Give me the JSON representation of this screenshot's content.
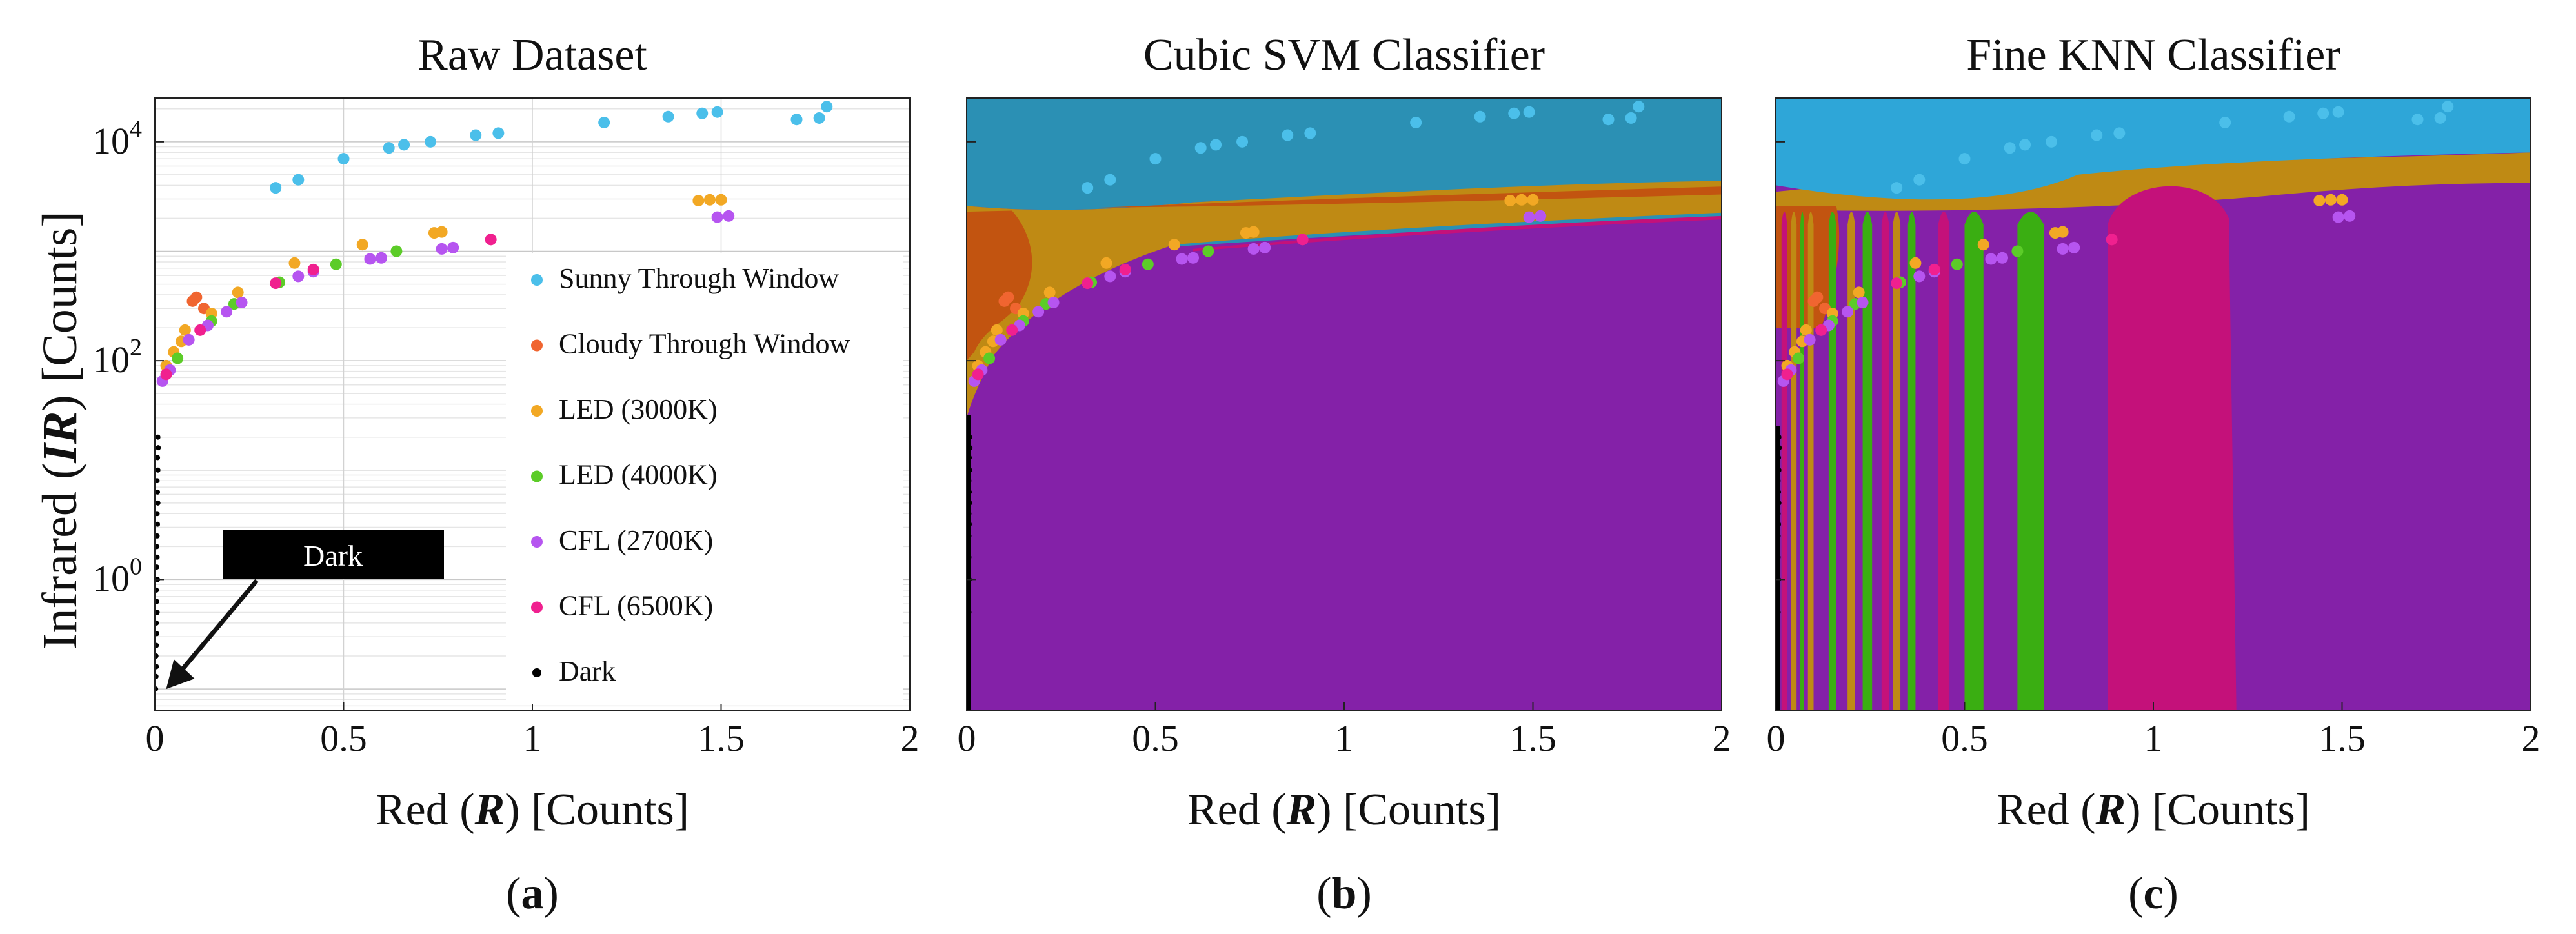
{
  "colors": {
    "sunny": "#4bbfea",
    "cloudy": "#f06530",
    "led3000": "#f2a824",
    "led4000": "#5ccc28",
    "cfl2700": "#b655f0",
    "cfl6500": "#f0208f",
    "dark": "#000000",
    "region_sunny": "#2b90b4",
    "region_sunny_knn": "#2ea6d8",
    "region_cloudy": "#c25410",
    "region_led3000": "#bf8a14",
    "region_led4000": "#3aae12",
    "region_cfl2700": "#8421a8",
    "region_cfl6500": "#c4117a",
    "region_dark": "#000000"
  },
  "chart_data": [
    {
      "id": "a",
      "type": "scatter",
      "title": "Raw Dataset",
      "panel_label": "(a)",
      "panel_letter": "a",
      "xlabel_pre": "Red (",
      "xlabel_var": "R",
      "xlabel_post": ")  [Counts]",
      "ylabel_pre": "Infrared (",
      "ylabel_var": "IR",
      "ylabel_post": ")  [Counts]",
      "xlim": [
        0,
        2
      ],
      "ylim_log10": [
        -1.2,
        4.4
      ],
      "xticks": [
        {
          "value": 0,
          "label": "0"
        },
        {
          "value": 0.5,
          "label": "0.5"
        },
        {
          "value": 1,
          "label": "1"
        },
        {
          "value": 1.5,
          "label": "1.5"
        },
        {
          "value": 2,
          "label": "2"
        }
      ],
      "yticks": [
        {
          "log10": 0,
          "base": "10",
          "exp": "0"
        },
        {
          "log10": 2,
          "base": "10",
          "exp": "2"
        },
        {
          "log10": 4,
          "base": "10",
          "exp": "4"
        }
      ],
      "grid": true,
      "legend_position": "right",
      "legend": [
        {
          "label": "Sunny Through Window",
          "key": "sunny"
        },
        {
          "label": "Cloudy Through Window",
          "key": "cloudy"
        },
        {
          "label": "LED (3000K)",
          "key": "led3000"
        },
        {
          "label": "LED (4000K)",
          "key": "led4000"
        },
        {
          "label": "CFL (2700K)",
          "key": "cfl2700"
        },
        {
          "label": "CFL (6500K)",
          "key": "cfl6500"
        },
        {
          "label": "Dark",
          "key": "dark"
        }
      ],
      "annotation": {
        "text": "Dark",
        "points_to": [
          0.03,
          0.1
        ]
      }
    },
    {
      "id": "b",
      "type": "scatter",
      "title": "Cubic SVM Classifier",
      "panel_label": "(b)",
      "panel_letter": "b",
      "xlabel_pre": "Red (",
      "xlabel_var": "R",
      "xlabel_post": ") [Counts]",
      "xlim": [
        0,
        2
      ],
      "ylim_log10": [
        -1.2,
        4.4
      ],
      "xticks": [
        {
          "value": 0,
          "label": "0"
        },
        {
          "value": 0.5,
          "label": "0.5"
        },
        {
          "value": 1,
          "label": "1"
        },
        {
          "value": 1.5,
          "label": "1.5"
        },
        {
          "value": 2,
          "label": "2"
        }
      ],
      "decision_regions": "svm"
    },
    {
      "id": "c",
      "type": "scatter",
      "title": "Fine KNN Classifier",
      "panel_label": "(c)",
      "panel_letter": "c",
      "xlabel_pre": "Red (",
      "xlabel_var": "R",
      "xlabel_post": ") [Counts]",
      "xlim": [
        0,
        2
      ],
      "ylim_log10": [
        -1.2,
        4.4
      ],
      "xticks": [
        {
          "value": 0,
          "label": "0"
        },
        {
          "value": 0.5,
          "label": "0.5"
        },
        {
          "value": 1,
          "label": "1"
        },
        {
          "value": 1.5,
          "label": "1.5"
        },
        {
          "value": 2,
          "label": "2"
        }
      ],
      "decision_regions": "knn"
    }
  ],
  "series": [
    {
      "name": "Sunny Through Window",
      "key": "sunny",
      "points": [
        [
          0.32,
          3800
        ],
        [
          0.38,
          4500
        ],
        [
          0.5,
          7000
        ],
        [
          0.62,
          8800
        ],
        [
          0.66,
          9400
        ],
        [
          0.73,
          10000
        ],
        [
          0.85,
          11500
        ],
        [
          0.91,
          12000
        ],
        [
          1.19,
          15000
        ],
        [
          1.36,
          17000
        ],
        [
          1.45,
          18200
        ],
        [
          1.49,
          18700
        ],
        [
          1.7,
          16000
        ],
        [
          1.76,
          16500
        ],
        [
          1.78,
          21000
        ]
      ]
    },
    {
      "name": "Cloudy Through Window",
      "key": "cloudy",
      "points": [
        [
          0.1,
          350
        ],
        [
          0.11,
          380
        ],
        [
          0.13,
          300
        ]
      ]
    },
    {
      "name": "LED (3000K)",
      "key": "led3000",
      "points": [
        [
          0.03,
          90
        ],
        [
          0.05,
          120
        ],
        [
          0.07,
          150
        ],
        [
          0.08,
          190
        ],
        [
          0.15,
          270
        ],
        [
          0.22,
          420
        ],
        [
          0.37,
          780
        ],
        [
          0.55,
          1150
        ],
        [
          0.74,
          1470
        ],
        [
          0.76,
          1500
        ],
        [
          1.44,
          2900
        ],
        [
          1.47,
          2950
        ],
        [
          1.5,
          2950
        ]
      ]
    },
    {
      "name": "LED (4000K)",
      "key": "led4000",
      "points": [
        [
          0.06,
          105
        ],
        [
          0.15,
          230
        ],
        [
          0.21,
          330
        ],
        [
          0.33,
          520
        ],
        [
          0.48,
          760
        ],
        [
          0.64,
          1000
        ]
      ]
    },
    {
      "name": "CFL (2700K)",
      "key": "cfl2700",
      "points": [
        [
          0.02,
          65
        ],
        [
          0.04,
          82
        ],
        [
          0.09,
          155
        ],
        [
          0.14,
          210
        ],
        [
          0.19,
          280
        ],
        [
          0.23,
          340
        ],
        [
          0.38,
          590
        ],
        [
          0.42,
          650
        ],
        [
          0.57,
          850
        ],
        [
          0.6,
          870
        ],
        [
          0.76,
          1050
        ],
        [
          0.79,
          1080
        ],
        [
          1.49,
          2050
        ],
        [
          1.52,
          2100
        ]
      ]
    },
    {
      "name": "CFL (6500K)",
      "key": "cfl6500",
      "points": [
        [
          0.03,
          75
        ],
        [
          0.12,
          190
        ],
        [
          0.32,
          510
        ],
        [
          0.42,
          680
        ],
        [
          0.89,
          1280
        ]
      ]
    },
    {
      "name": "Dark",
      "key": "dark",
      "points": [
        [
          0.002,
          0.1
        ],
        [
          0.003,
          0.13
        ],
        [
          0.004,
          0.16
        ],
        [
          0.003,
          0.2
        ],
        [
          0.004,
          0.25
        ],
        [
          0.005,
          0.32
        ],
        [
          0.004,
          0.4
        ],
        [
          0.006,
          0.5
        ],
        [
          0.005,
          0.63
        ],
        [
          0.004,
          0.8
        ],
        [
          0.007,
          1
        ],
        [
          0.005,
          1.3
        ],
        [
          0.006,
          1.6
        ],
        [
          0.005,
          2
        ],
        [
          0.006,
          2.5
        ],
        [
          0.007,
          3.2
        ],
        [
          0.006,
          4
        ],
        [
          0.008,
          5
        ],
        [
          0.007,
          6.3
        ],
        [
          0.006,
          8
        ],
        [
          0.008,
          10
        ],
        [
          0.007,
          13
        ],
        [
          0.009,
          16
        ],
        [
          0.008,
          20
        ]
      ]
    }
  ]
}
